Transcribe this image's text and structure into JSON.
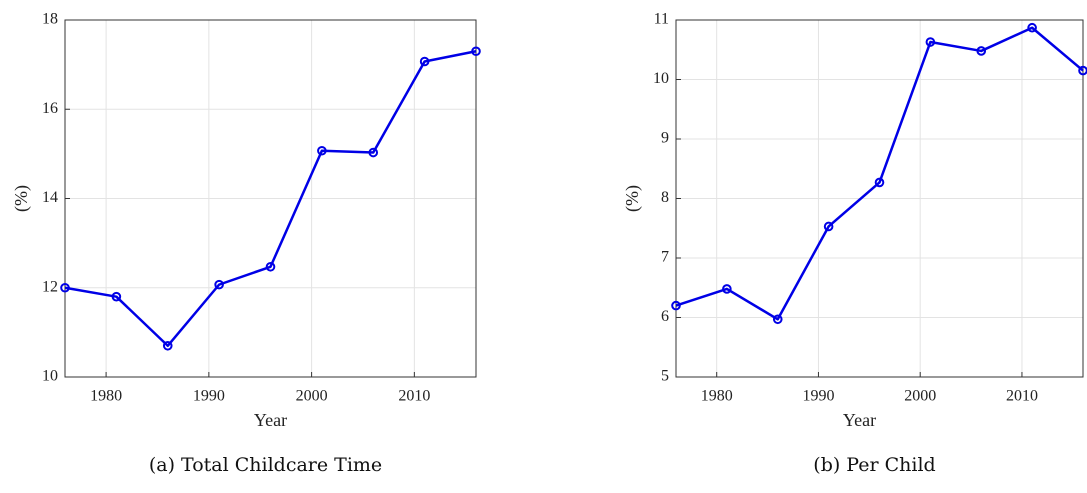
{
  "chart_data": [
    {
      "type": "line",
      "caption": "(a) Total Childcare Time",
      "xlabel": "Year",
      "ylabel": "(%)",
      "x": [
        1976,
        1981,
        1986,
        1991,
        1996,
        2001,
        2006,
        2011,
        2016
      ],
      "series": [
        {
          "color": "#0000e6",
          "values": [
            12.0,
            11.8,
            10.7,
            12.07,
            12.47,
            15.07,
            15.03,
            17.07,
            17.3
          ]
        }
      ],
      "xlim": [
        1976,
        2016
      ],
      "xticks": [
        1980,
        1990,
        2000,
        2010
      ],
      "ylim": [
        10,
        18
      ],
      "yticks": [
        10,
        12,
        14,
        16,
        18
      ],
      "grid": true
    },
    {
      "type": "line",
      "caption": "(b) Per Child",
      "xlabel": "Year",
      "ylabel": "(%)",
      "x": [
        1976,
        1981,
        1986,
        1991,
        1996,
        2001,
        2006,
        2011,
        2016
      ],
      "series": [
        {
          "color": "#0000e6",
          "values": [
            6.2,
            6.48,
            5.97,
            7.53,
            8.27,
            10.63,
            10.48,
            10.87,
            10.15
          ]
        }
      ],
      "xlim": [
        1976,
        2016
      ],
      "xticks": [
        1980,
        1990,
        2000,
        2010
      ],
      "ylim": [
        5,
        11
      ],
      "yticks": [
        5,
        6,
        7,
        8,
        9,
        10,
        11
      ],
      "grid": true
    }
  ]
}
